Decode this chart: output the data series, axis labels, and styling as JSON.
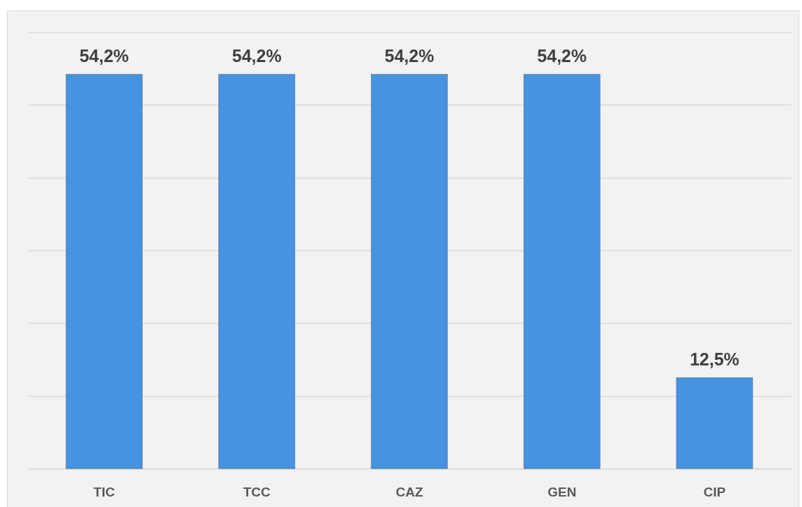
{
  "chart_data": {
    "type": "bar",
    "categories": [
      "TIC",
      "TCC",
      "CAZ",
      "GEN",
      "CIP"
    ],
    "values": [
      54.2,
      54.2,
      54.2,
      54.2,
      12.5
    ],
    "value_labels": [
      "54,2%",
      "54,2%",
      "54,2%",
      "54,2%",
      "12,5%"
    ],
    "color": "#4793e1",
    "ylim": [
      0,
      60
    ],
    "yticks": [
      0,
      10,
      20,
      30,
      40,
      50,
      60
    ],
    "grid": "y",
    "tick_labels": "x"
  }
}
